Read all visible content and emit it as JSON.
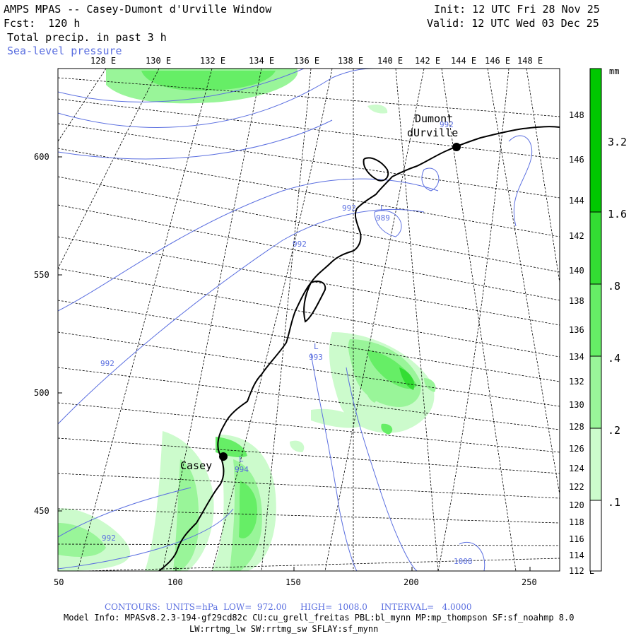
{
  "header": {
    "title": "AMPS MPAS -- Casey-Dumont d'Urville Window",
    "fcst": "Fcst:  120 h",
    "field": "Total precip. in past 3 h",
    "overlay": "Sea-level pressure",
    "init": "Init: 12 UTC Fri 28 Nov 25",
    "valid": "Valid: 12 UTC Wed 03 Dec 25"
  },
  "top_lon_labels": [
    "128 E",
    "130 E",
    "132 E",
    "134 E",
    "136 E",
    "138 E",
    "140 E",
    "142 E",
    "144 E",
    "146 E",
    "148 E"
  ],
  "right_lon_labels": [
    "148 E",
    "146 E",
    "144 E",
    "142 E",
    "140 E",
    "138 E",
    "136 E",
    "134 E",
    "132 E",
    "130 E",
    "128 E",
    "126 E",
    "124 E",
    "122 E",
    "120 E",
    "118 E",
    "116 E",
    "114 E",
    "112 E"
  ],
  "y_axis": [
    "600",
    "550",
    "500",
    "450"
  ],
  "x_axis": [
    "50",
    "100",
    "150",
    "200",
    "250"
  ],
  "stations": [
    {
      "name": "Casey"
    },
    {
      "name": "Dumont"
    },
    {
      "name": "dUrville"
    }
  ],
  "pressure_labels": [
    "992",
    "992",
    "992",
    "992",
    "992",
    "993",
    "989",
    "994",
    "1008"
  ],
  "lows": [
    "L",
    "L",
    "L"
  ],
  "colorbar": {
    "unit": "mm",
    "levels": [
      "3.2",
      "1.6",
      ".8",
      ".4",
      ".2",
      ".1"
    ],
    "colors": [
      "#00c800",
      "#33dd33",
      "#66ee66",
      "#99f599",
      "#ccfbcc",
      "#ffffff"
    ]
  },
  "footer": {
    "contours": "CONTOURS:  UNITS=hPa  LOW=  972.00     HIGH=  1008.0     INTERVAL=   4.0000",
    "model_info": "Model Info: MPASv8.2.3-194-gf29cd82c CU:cu_grell_freitas PBL:bl_mynn MP:mp_thompson SF:sf_noahmp 8.0",
    "schemes": "LW:rrtmg_lw SW:rrtmg_sw SFLAY:sf_mynn"
  }
}
